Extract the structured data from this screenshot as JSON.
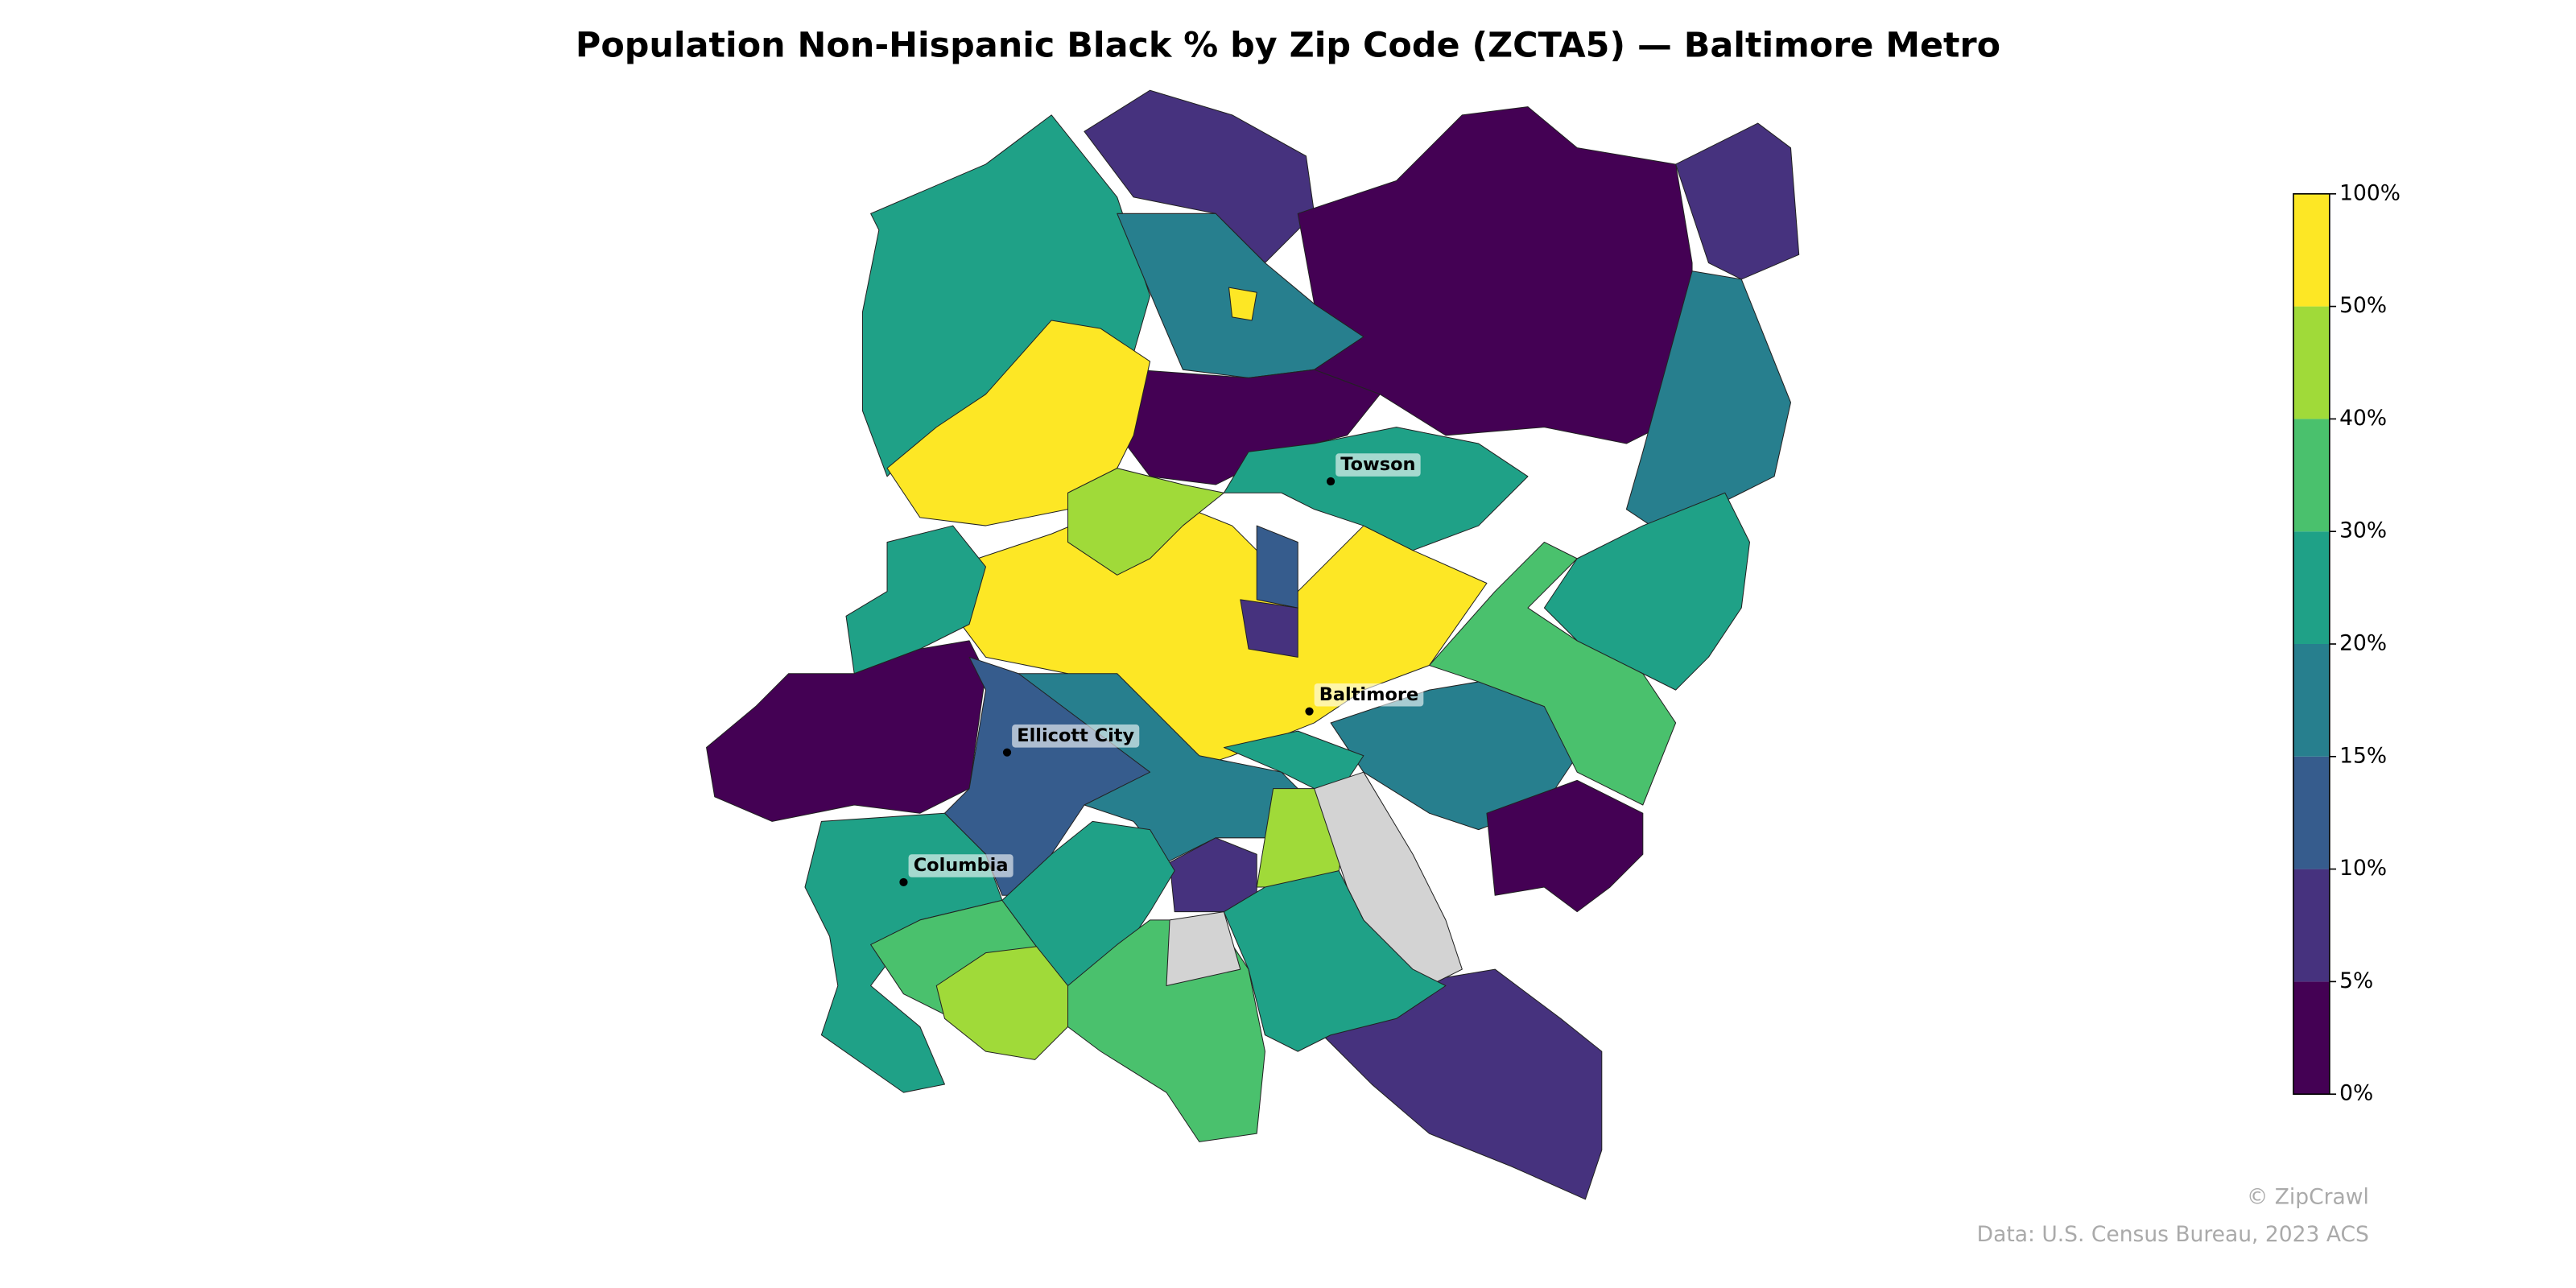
{
  "title": "Population Non-Hispanic Black % by Zip Code (ZCTA5) — Baltimore Metro",
  "legend": {
    "ticks": [
      {
        "value": 0,
        "label": "0%"
      },
      {
        "value": 5,
        "label": "5%"
      },
      {
        "value": 10,
        "label": "10%"
      },
      {
        "value": 15,
        "label": "15%"
      },
      {
        "value": 20,
        "label": "20%"
      },
      {
        "value": 30,
        "label": "30%"
      },
      {
        "value": 40,
        "label": "40%"
      },
      {
        "value": 50,
        "label": "50%"
      },
      {
        "value": 100,
        "label": "100%"
      }
    ],
    "colors": [
      "#440154",
      "#46327e",
      "#365c8d",
      "#277f8e",
      "#1fa187",
      "#4ac16d",
      "#a0da39",
      "#fde725"
    ]
  },
  "cities": [
    "Towson",
    "Baltimore",
    "Ellicott City",
    "Columbia"
  ],
  "credits": [
    "© ZipCrawl",
    "Data: U.S. Census Bureau, 2023 ACS"
  ]
}
